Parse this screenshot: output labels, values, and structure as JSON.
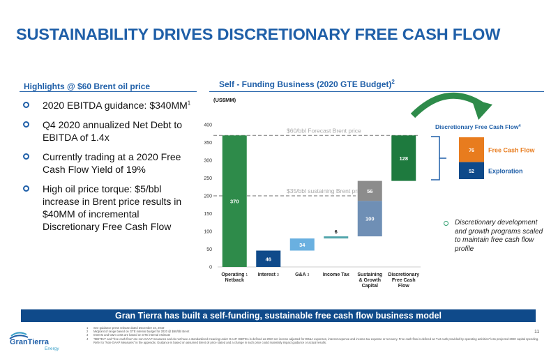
{
  "slide": {
    "title": "SUSTAINABILITY DRIVES DISCRETIONARY FREE CASH FLOW",
    "left_heading": "Highlights @ $60 Brent oil price",
    "right_heading": "Self - Funding Business (2020 GTE Budget)",
    "right_heading_sup": "2",
    "bullets": [
      {
        "text": "2020 EBITDA guidance: $340MM",
        "sup": "1"
      },
      {
        "text": "Q4 2020 annualized Net Debt to EBITDA of 1.4x",
        "sup": ""
      },
      {
        "text": "Currently trading at a 2020 Free Cash Flow Yield of 19%",
        "sup": ""
      },
      {
        "text": "High oil price torque: $5/bbl increase in Brent price results in $40MM of incremental Discretionary Free Cash Flow",
        "sup": ""
      }
    ],
    "note": "Discretionary development and growth programs scaled to maintain free cash flow profile",
    "banner": "Gran Tierra has built a self-funding, sustainable free cash flow business model",
    "footnotes": [
      {
        "num": "1",
        "text": "See guidance press release dated December 10, 2019"
      },
      {
        "num": "2",
        "text": "Midpoint of range based on GTE internal budget for 2020 @ $60/bbl Brent"
      },
      {
        "num": "3",
        "text": "Interest and G&A costs are based on GTE internal estimate"
      },
      {
        "num": "4",
        "text": "\"EBITDA\" and \"free cash flow\" are non-GAAP measures and do not have a standardized meaning under GAAP. EBITDA is defined as 2020 net income adjusted for DD&A expenses, interest expense and income tax expense or recovery. Free cash flow is defined as \"net cash provided by operating activities\" less projected 2020 capital spending. Refer to \"Non-GAAP Measures\" in the appendix. Guidance is based on assumed Brent oil price stated and a change in such price could materially impact guidance or actual results."
      }
    ],
    "page_number": "11",
    "logo": {
      "name": "GranTierra",
      "sub": "Energy"
    }
  },
  "chart_data": {
    "type": "bar",
    "subtype": "waterfall",
    "unit_label": "(US$MM)",
    "ylim": [
      0,
      400
    ],
    "yticks": [
      0,
      50,
      100,
      150,
      200,
      250,
      300,
      350,
      400
    ],
    "categories": [
      {
        "label": [
          "Operating",
          "Netback"
        ],
        "sup": "1"
      },
      {
        "label": [
          "Interest"
        ],
        "sup": "3"
      },
      {
        "label": [
          "G&A"
        ],
        "sup": "3"
      },
      {
        "label": [
          "Income Tax"
        ],
        "sup": ""
      },
      {
        "label": [
          "Sustaining",
          "& Growth",
          "Capital"
        ],
        "sup": ""
      },
      {
        "label": [
          "Discretionary",
          "Free Cash",
          "Flow"
        ],
        "sup": ""
      }
    ],
    "bars": [
      {
        "category": 0,
        "segments": [
          {
            "start": 0,
            "value": 370,
            "label": "370",
            "color": "#2e8b4a"
          }
        ]
      },
      {
        "category": 1,
        "segments": [
          {
            "start": 0,
            "value": 46,
            "label": "46",
            "color": "#0f4a8a"
          }
        ]
      },
      {
        "category": 2,
        "segments": [
          {
            "start": 46,
            "value": 34,
            "label": "34",
            "color": "#6ab0e0"
          }
        ]
      },
      {
        "category": 3,
        "segments": [
          {
            "start": 80,
            "value": 6,
            "label": "6",
            "color": "#55a7ad"
          }
        ]
      },
      {
        "category": 4,
        "segments": [
          {
            "start": 86,
            "value": 100,
            "label": "100",
            "color": "#6f8fb5"
          },
          {
            "start": 186,
            "value": 56,
            "label": "56",
            "color": "#8c8c8c"
          }
        ]
      },
      {
        "category": 5,
        "segments": [
          {
            "start": 242,
            "value": 128,
            "label": "128",
            "color": "#1e7a3e"
          }
        ]
      }
    ],
    "reference_lines": [
      {
        "value": 370,
        "label": "$60/bbl Forecast Brent price"
      },
      {
        "value": 200,
        "label": "$35/bbl sustaining Brent price"
      }
    ],
    "breakdown": {
      "title": "Discretionary Free Cash Flow",
      "title_sup": "4",
      "items": [
        {
          "value": 76,
          "label": "Free Cash Flow",
          "color": "#e87c1e"
        },
        {
          "value": 52,
          "label": "Exploration",
          "color": "#0f4a8a"
        }
      ]
    },
    "colors": {
      "accent": "#1f5fa8",
      "arrow": "#2e8b4a"
    }
  }
}
